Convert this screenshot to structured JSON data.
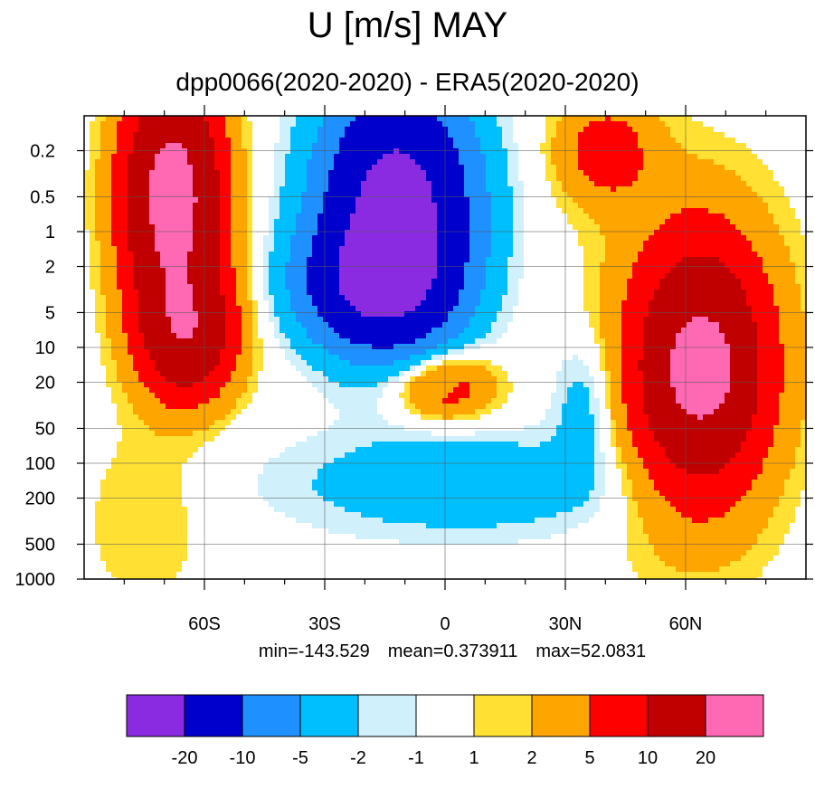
{
  "chart_data": {
    "type": "heatmap",
    "title": "U [m/s] MAY",
    "subtitle": "dpp0066(2020-2020) - ERA5(2020-2020)",
    "x_axis": {
      "quantity": "latitude",
      "range": [
        -90,
        90
      ],
      "ticks": [
        -60,
        -30,
        0,
        30,
        60
      ],
      "tick_labels": [
        "60S",
        "30S",
        "0",
        "30N",
        "60N"
      ],
      "minor_ticks_every": 10
    },
    "y_axis": {
      "quantity": "pressure",
      "scale": "log",
      "reversed": true,
      "range": [
        1000,
        0.1
      ],
      "ticks": [
        0.2,
        0.5,
        1,
        2,
        5,
        10,
        20,
        50,
        100,
        200,
        500,
        1000
      ],
      "tick_labels": [
        "0.2",
        "0.5",
        "1",
        "2",
        "5",
        "10",
        "20",
        "50",
        "100",
        "200",
        "500",
        "1000"
      ]
    },
    "grid": true,
    "stats": {
      "min": "min=-143.529",
      "mean": "mean=0.373911",
      "max": "max=52.0831"
    },
    "colorbar": {
      "placement": "bottom",
      "levels": [
        "-20",
        "-10",
        "-5",
        "-2",
        "-1",
        "1",
        "2",
        "5",
        "10",
        "20"
      ],
      "colors": [
        "#8a2be2",
        "#0000cd",
        "#1e90ff",
        "#00bfff",
        "#d0f0fc",
        "#ffffff",
        "#ffe033",
        "#ffa500",
        "#ff0000",
        "#c00000",
        "#ff69b4"
      ]
    },
    "field_features": [
      {
        "shape": "ellipse",
        "lat": -68,
        "p": 0.5,
        "rlat": 12,
        "rdec": 1.0,
        "value": 25
      },
      {
        "shape": "ellipse",
        "lat": -64,
        "p": 8,
        "rlat": 12,
        "rdec": 0.55,
        "value": 15
      },
      {
        "shape": "ellipse",
        "lat": -12,
        "p": 0.6,
        "rlat": 18,
        "rdec": 1.0,
        "value": -25
      },
      {
        "shape": "ellipse",
        "lat": -18,
        "p": 3,
        "rlat": 18,
        "rdec": 0.5,
        "value": -15
      },
      {
        "shape": "ellipse",
        "lat": 0,
        "p": 22,
        "rlat": 12,
        "rdec": 0.28,
        "value": 8
      },
      {
        "shape": "ellipse",
        "lat": 0,
        "p": 22,
        "rlat": 3,
        "rdec": 0.07,
        "value": -3
      },
      {
        "shape": "ellipse",
        "lat": 64,
        "p": 15,
        "rlat": 5,
        "rdec": 0.25,
        "value": 25
      },
      {
        "shape": "ellipse",
        "lat": 64,
        "p": 15,
        "rlat": 15,
        "rdec": 1.0,
        "value": 15
      },
      {
        "shape": "ellipse",
        "lat": 62,
        "p": 15,
        "rlat": 22,
        "rdec": 1.4,
        "value": 7
      },
      {
        "shape": "ellipse",
        "lat": 40,
        "p": 0.2,
        "rlat": 12,
        "rdec": 0.45,
        "value": 7
      },
      {
        "shape": "ellipse",
        "lat": 5,
        "p": 150,
        "rlat": 45,
        "rdec": 0.45,
        "value": -4
      },
      {
        "shape": "ellipse",
        "lat": 35,
        "p": 30,
        "rlat": 8,
        "rdec": 0.6,
        "value": -4
      },
      {
        "shape": "ellipse",
        "lat": -75,
        "p": 300,
        "rlat": 15,
        "rdec": 0.8,
        "value": 2
      }
    ]
  }
}
